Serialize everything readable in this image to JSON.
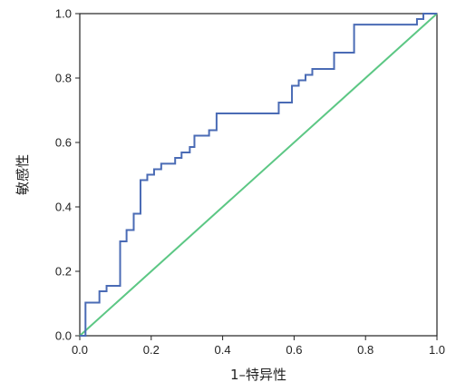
{
  "chart_data": {
    "type": "line",
    "title": "",
    "xlabel": "1–特异性",
    "ylabel": "敏感性",
    "xlim": [
      0,
      1
    ],
    "ylim": [
      0,
      1
    ],
    "xticks": [
      "0.0",
      "0.2",
      "0.4",
      "0.6",
      "0.8",
      "1.0"
    ],
    "yticks": [
      "0.0",
      "0.2",
      "0.4",
      "0.6",
      "0.8",
      "1.0"
    ],
    "grid": false,
    "legend": "none",
    "series": [
      {
        "color": "#4a6bb5",
        "x": [
          0,
          0.016,
          0.016,
          0.055,
          0.055,
          0.075,
          0.075,
          0.113,
          0.113,
          0.131,
          0.131,
          0.151,
          0.151,
          0.17,
          0.17,
          0.189,
          0.189,
          0.208,
          0.208,
          0.228,
          0.228,
          0.267,
          0.267,
          0.285,
          0.285,
          0.308,
          0.308,
          0.321,
          0.321,
          0.362,
          0.362,
          0.383,
          0.383,
          0.557,
          0.557,
          0.594,
          0.594,
          0.613,
          0.613,
          0.632,
          0.632,
          0.651,
          0.651,
          0.712,
          0.712,
          0.768,
          0.768,
          0.944,
          0.944,
          0.962,
          0.962,
          1.0
        ],
        "y": [
          0,
          0,
          0.103,
          0.103,
          0.138,
          0.138,
          0.155,
          0.155,
          0.293,
          0.293,
          0.328,
          0.328,
          0.379,
          0.379,
          0.483,
          0.483,
          0.5,
          0.5,
          0.517,
          0.517,
          0.534,
          0.534,
          0.552,
          0.552,
          0.569,
          0.569,
          0.586,
          0.586,
          0.621,
          0.621,
          0.638,
          0.638,
          0.69,
          0.69,
          0.724,
          0.724,
          0.776,
          0.776,
          0.793,
          0.793,
          0.81,
          0.81,
          0.828,
          0.828,
          0.879,
          0.879,
          0.966,
          0.966,
          0.983,
          0.983,
          1.0,
          1.0
        ]
      },
      {
        "color": "#5cc784",
        "x": [
          0,
          1
        ],
        "y": [
          0,
          1
        ]
      }
    ]
  }
}
